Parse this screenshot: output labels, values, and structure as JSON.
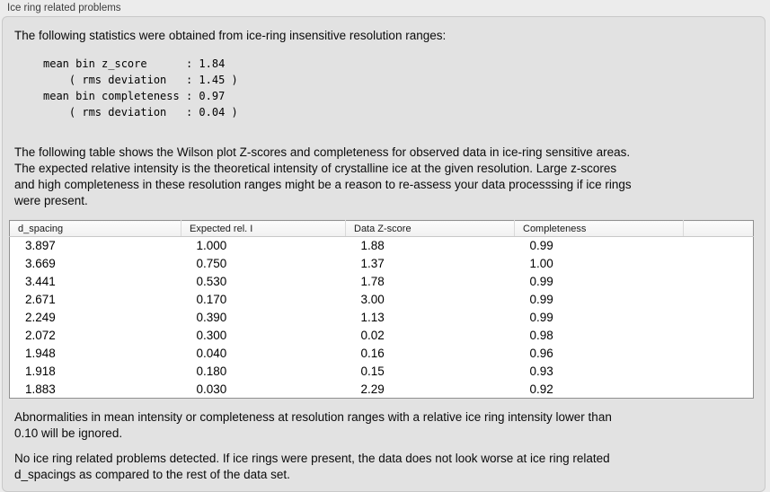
{
  "panel": {
    "title": "Ice ring related problems"
  },
  "intro": "The following statistics were obtained from ice-ring insensitive resolution ranges:",
  "stats_block": "mean bin z_score      : 1.84\n    ( rms deviation   : 1.45 )\nmean bin completeness : 0.97\n    ( rms deviation   : 0.04 )",
  "description": "The following table shows the Wilson plot Z-scores and completeness for observed data in ice-ring sensitive areas.\nThe expected relative intensity is the theoretical intensity of crystalline ice at the given resolution. Large z-scores\nand high completeness in these resolution ranges might be a reason to re-assess your data processsing if ice rings\nwere present.",
  "table": {
    "columns": [
      "d_spacing",
      "Expected rel. I",
      "Data Z-score",
      "Completeness"
    ],
    "rows": [
      [
        "3.897",
        "1.000",
        "1.88",
        "0.99"
      ],
      [
        "3.669",
        "0.750",
        "1.37",
        "1.00"
      ],
      [
        "3.441",
        "0.530",
        "1.78",
        "0.99"
      ],
      [
        "2.671",
        "0.170",
        "3.00",
        "0.99"
      ],
      [
        "2.249",
        "0.390",
        "1.13",
        "0.99"
      ],
      [
        "2.072",
        "0.300",
        "0.02",
        "0.98"
      ],
      [
        "1.948",
        "0.040",
        "0.16",
        "0.96"
      ],
      [
        "1.918",
        "0.180",
        "0.15",
        "0.93"
      ],
      [
        "1.883",
        "0.030",
        "2.29",
        "0.92"
      ]
    ]
  },
  "note": "Abnormalities in mean intensity or completeness at resolution ranges with a relative ice ring intensity lower than\n0.10 will be ignored.",
  "conclusion": "No ice ring related problems detected. If ice rings were present, the data does not look worse at ice ring related\nd_spacings as compared to the rest of the data set."
}
